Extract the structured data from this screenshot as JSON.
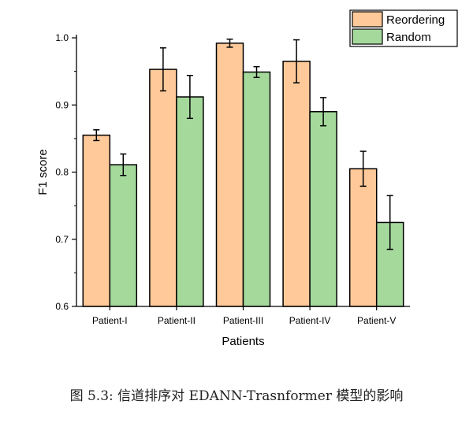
{
  "chart_data": {
    "type": "bar",
    "categories": [
      "Patient-I",
      "Patient-II",
      "Patient-III",
      "Patient-IV",
      "Patient-V"
    ],
    "series": [
      {
        "name": "Reordering",
        "values": [
          0.855,
          0.953,
          0.992,
          0.965,
          0.805
        ],
        "errors": [
          0.008,
          0.032,
          0.006,
          0.032,
          0.026
        ],
        "color": "#FFC999"
      },
      {
        "name": "Random",
        "values": [
          0.811,
          0.912,
          0.949,
          0.89,
          0.725
        ],
        "errors": [
          0.016,
          0.032,
          0.008,
          0.021,
          0.04
        ],
        "color": "#A4D99B"
      }
    ],
    "xlabel": "Patients",
    "ylabel": "F1 score",
    "ylim": [
      0.6,
      1.0
    ],
    "yticks": [
      "0.6",
      "0.7",
      "0.8",
      "0.9",
      "1.0"
    ],
    "grid": false,
    "legend_position": "top-right"
  },
  "caption": "图 5.3: 信道排序对 EDANN-Trasnformer 模型的影响"
}
